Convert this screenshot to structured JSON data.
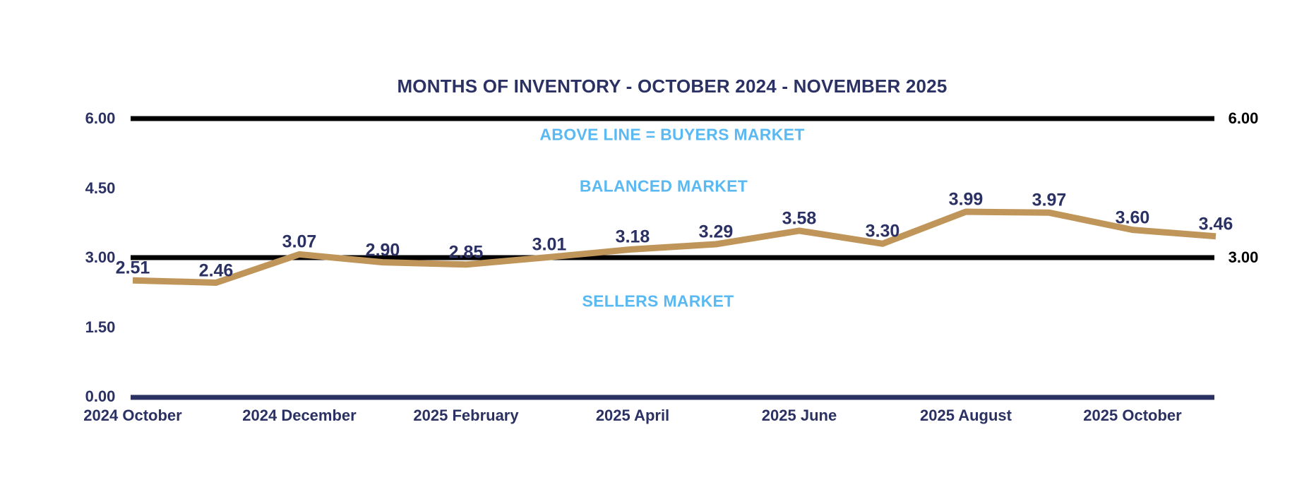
{
  "chart_data": {
    "type": "line",
    "title": "MONTHS OF INVENTORY - OCTOBER 2024 - NOVEMBER 2025",
    "series": [
      {
        "name": "months-of-inventory",
        "values": [
          2.51,
          2.46,
          3.07,
          2.9,
          2.85,
          3.01,
          3.18,
          3.29,
          3.58,
          3.3,
          3.99,
          3.97,
          3.6,
          3.46
        ]
      }
    ],
    "data_labels": [
      "2.51",
      "2.46",
      "3.07",
      "2.90",
      "2.85",
      "3.01",
      "3.18",
      "3.29",
      "3.58",
      "3.30",
      "3.99",
      "3.97",
      "3.60",
      "3.46"
    ],
    "x_tick_labels": [
      "2024 October",
      "2024 December",
      "2025 February",
      "2025 April",
      "2025 June",
      "2025 August",
      "2025 October"
    ],
    "x_tick_indices": [
      0,
      2,
      4,
      6,
      8,
      10,
      12
    ],
    "y_axis_left_labels": [
      "6.00",
      "4.50",
      "3.00",
      "1.50",
      "0.00"
    ],
    "y_axis_left_values": [
      6,
      4.5,
      3,
      1.5,
      0
    ],
    "y_axis_right": [
      {
        "label": "6.00",
        "value": 6
      },
      {
        "label": "3.00",
        "value": 3
      }
    ],
    "reference_lines": [
      {
        "name": "buyers-threshold",
        "value": 6
      },
      {
        "name": "balanced-threshold",
        "value": 3
      }
    ],
    "annotations": [
      {
        "text": "ABOVE LINE = BUYERS MARKET"
      },
      {
        "text": "BALANCED MARKET"
      },
      {
        "text": "SELLERS MARKET"
      }
    ],
    "ylim": [
      0,
      6
    ],
    "grid": false,
    "legend": "none",
    "colors": {
      "line": "#c0955a",
      "reference_line": "#000000",
      "axis_line": "#2b3163",
      "text": "#2b3163",
      "right_label_text": "#000000",
      "annotation_text": "#5bb9f2",
      "background": "#ffffff"
    }
  }
}
